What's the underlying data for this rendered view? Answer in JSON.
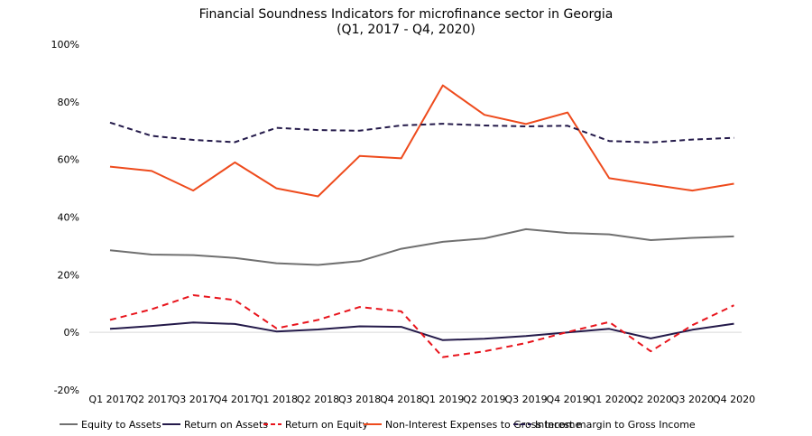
{
  "chart_data": {
    "type": "line",
    "title": "Financial Soundness Indicators for microfinance sector in Georgia",
    "subtitle": "(Q1, 2017 - Q4, 2020)",
    "xlabel": "",
    "ylabel": "",
    "ylim": [
      -20,
      100
    ],
    "yticks": [
      "100%",
      "80%",
      "60%",
      "40%",
      "20%",
      "0%",
      "-20%"
    ],
    "ytick_values": [
      100,
      80,
      60,
      40,
      20,
      0,
      -20
    ],
    "grid": false,
    "legend_position": "bottom",
    "categories": [
      "Q1 2017",
      "Q2 2017",
      "Q3 2017",
      "Q4 2017",
      "Q1 2018",
      "Q2 2018",
      "Q3 2018",
      "Q4 2018",
      "Q1 2019",
      "Q2 2019",
      "Q3 2019",
      "Q4 2019",
      "Q1 2020",
      "Q2 2020",
      "Q3 2020",
      "Q4 2020"
    ],
    "series": [
      {
        "name": "Equity to Assets",
        "color": "#707070",
        "dash": "solid",
        "values": [
          28.5,
          27,
          26.8,
          25.8,
          24,
          23.4,
          24.7,
          29,
          31.4,
          32.6,
          35.8,
          34.5,
          34,
          32,
          32.8,
          33.3
        ]
      },
      {
        "name": "Return on Assets",
        "color": "#241a4a",
        "dash": "solid",
        "values": [
          1.2,
          2.2,
          3.4,
          2.9,
          0.3,
          1.0,
          2.1,
          1.9,
          -2.7,
          -2.2,
          -1.3,
          0,
          1.2,
          -2.1,
          0.9,
          3.0
        ]
      },
      {
        "name": "Return on Equity",
        "color": "#e8141c",
        "dash": "dashed",
        "values": [
          4.3,
          8.0,
          12.9,
          11.2,
          1.4,
          4.3,
          8.8,
          7.3,
          -8.6,
          -6.6,
          -3.7,
          0.1,
          3.6,
          -6.6,
          2.5,
          9.4
        ]
      },
      {
        "name": "Non-Interest Expenses to Gross Income",
        "color": "#ee4b1d",
        "dash": "solid",
        "values": [
          57.5,
          56,
          49.2,
          59,
          50,
          47.2,
          61.2,
          60.4,
          85.7,
          75.5,
          72.3,
          76.3,
          53.5,
          51.3,
          49.2,
          51.6
        ]
      },
      {
        "name": "Interest margin to Gross Income",
        "color": "#241a4a",
        "dash": "dashed",
        "values": [
          72.8,
          68.2,
          66.8,
          66,
          71,
          70.2,
          70,
          71.8,
          72.4,
          71.8,
          71.5,
          71.7,
          66.4,
          65.9,
          66.9,
          67.5
        ]
      }
    ]
  }
}
